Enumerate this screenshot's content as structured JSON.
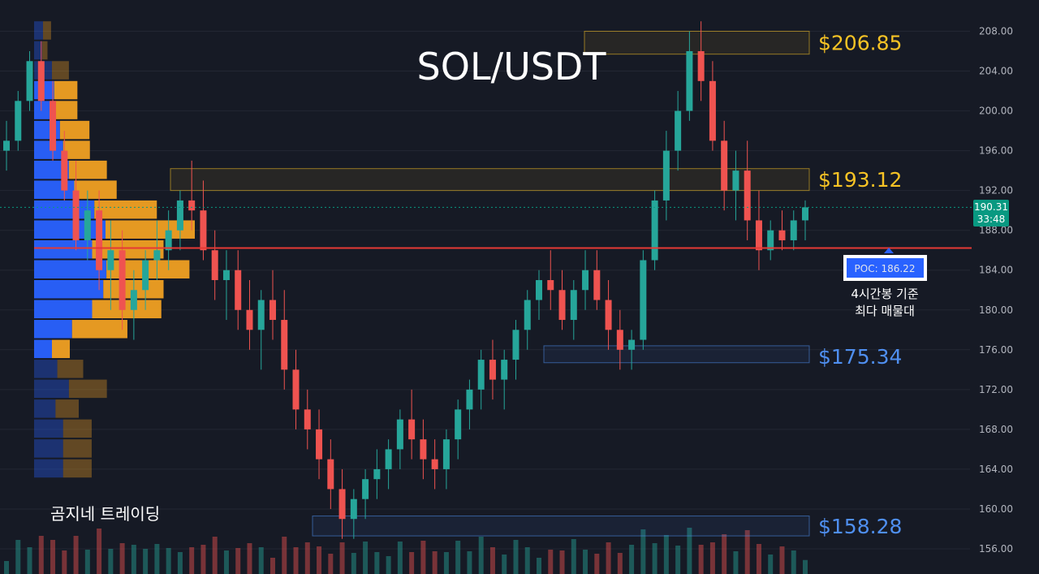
{
  "chart_data": {
    "type": "candlestick",
    "title": "SOL/USDT",
    "timeframe_note": [
      "4시간봉 기준",
      "최다 매물대"
    ],
    "watermark": "곰지네 트레이딩",
    "y_axis": {
      "range": [
        154,
        210
      ],
      "ticks": [
        "208.00",
        "204.00",
        "200.00",
        "196.00",
        "192.00",
        "188.00",
        "184.00",
        "180.00",
        "176.00",
        "172.00",
        "168.00",
        "164.00",
        "160.00",
        "156.00"
      ]
    },
    "last_price": {
      "value": "190.31",
      "countdown": "33:48",
      "price": 190.31
    },
    "poc": {
      "label": "POC: 186.22",
      "price": 186.22
    },
    "levels": [
      {
        "label": "$206.85",
        "price": 206.85,
        "color": "#f7c325",
        "zone": [
          205.7,
          208.0
        ],
        "zone_x_start": 0.69
      },
      {
        "label": "$193.12",
        "price": 193.12,
        "color": "#f7c325",
        "zone": [
          192.0,
          194.2
        ],
        "zone_x_start": 0.18
      },
      {
        "label": "$175.34",
        "price": 175.34,
        "color": "#4f8ff0",
        "zone": [
          174.7,
          176.4
        ],
        "zone_x_start": 0.64
      },
      {
        "label": "$158.28",
        "price": 158.28,
        "color": "#4f8ff0",
        "zone": [
          157.3,
          159.3
        ],
        "zone_x_start": 0.355
      }
    ],
    "candles": [
      [
        196,
        199,
        194,
        197
      ],
      [
        197,
        202,
        196,
        201
      ],
      [
        201,
        206,
        200,
        205
      ],
      [
        205,
        207,
        200,
        201
      ],
      [
        201,
        203,
        195,
        196
      ],
      [
        196,
        198,
        191,
        192
      ],
      [
        192,
        195,
        186,
        187
      ],
      [
        187,
        192,
        185,
        190
      ],
      [
        190,
        192,
        182,
        184
      ],
      [
        184,
        189,
        180,
        186
      ],
      [
        186,
        188,
        178,
        180
      ],
      [
        180,
        184,
        177,
        182
      ],
      [
        182,
        186,
        180,
        185
      ],
      [
        185,
        189,
        183,
        186
      ],
      [
        186,
        190,
        184,
        188
      ],
      [
        188,
        192,
        186,
        191
      ],
      [
        191,
        195,
        188,
        190
      ],
      [
        190,
        193,
        185,
        186
      ],
      [
        186,
        188,
        181,
        183
      ],
      [
        183,
        186,
        179,
        184
      ],
      [
        184,
        186,
        178,
        180
      ],
      [
        180,
        183,
        176,
        178
      ],
      [
        178,
        182,
        174,
        181
      ],
      [
        181,
        184,
        177,
        179
      ],
      [
        179,
        182,
        172,
        174
      ],
      [
        174,
        176,
        168,
        170
      ],
      [
        170,
        172,
        166,
        168
      ],
      [
        168,
        170,
        163,
        165
      ],
      [
        165,
        167,
        160,
        162
      ],
      [
        162,
        164,
        157,
        159
      ],
      [
        159,
        162,
        157,
        161
      ],
      [
        161,
        164,
        159,
        163
      ],
      [
        163,
        166,
        161,
        164
      ],
      [
        164,
        167,
        162,
        166
      ],
      [
        166,
        170,
        164,
        169
      ],
      [
        169,
        172,
        165,
        167
      ],
      [
        167,
        169,
        163,
        165
      ],
      [
        165,
        167,
        162,
        164
      ],
      [
        164,
        168,
        162,
        167
      ],
      [
        167,
        171,
        165,
        170
      ],
      [
        170,
        173,
        168,
        172
      ],
      [
        172,
        176,
        170,
        175
      ],
      [
        175,
        177,
        171,
        173
      ],
      [
        173,
        176,
        170,
        175
      ],
      [
        175,
        179,
        173,
        178
      ],
      [
        178,
        182,
        176,
        181
      ],
      [
        181,
        184,
        179,
        183
      ],
      [
        183,
        186,
        180,
        182
      ],
      [
        182,
        184,
        178,
        179
      ],
      [
        179,
        183,
        177,
        182
      ],
      [
        182,
        186,
        180,
        184
      ],
      [
        184,
        186,
        180,
        181
      ],
      [
        181,
        183,
        176,
        178
      ],
      [
        178,
        180,
        174,
        176
      ],
      [
        176,
        178,
        174,
        177
      ],
      [
        177,
        186,
        176,
        185
      ],
      [
        185,
        192,
        184,
        191
      ],
      [
        191,
        198,
        189,
        196
      ],
      [
        196,
        202,
        194,
        200
      ],
      [
        200,
        208,
        199,
        206
      ],
      [
        206,
        209,
        201,
        203
      ],
      [
        203,
        205,
        196,
        197
      ],
      [
        197,
        199,
        190,
        192
      ],
      [
        192,
        196,
        189,
        194
      ],
      [
        194,
        197,
        187,
        189
      ],
      [
        189,
        192,
        184,
        186
      ],
      [
        186,
        189,
        185,
        188
      ],
      [
        188,
        190,
        186,
        187
      ],
      [
        187,
        190,
        186,
        189
      ],
      [
        189,
        191,
        187,
        190.31
      ]
    ],
    "volume_profile": [
      {
        "price": 208.0,
        "buy": 20,
        "sell": 18
      },
      {
        "price": 206.0,
        "buy": 18,
        "sell": 12
      },
      {
        "price": 204.0,
        "buy": 40,
        "sell": 38
      },
      {
        "price": 202.0,
        "buy": 45,
        "sell": 52
      },
      {
        "price": 200.0,
        "buy": 45,
        "sell": 52
      },
      {
        "price": 198.0,
        "buy": 58,
        "sell": 66
      },
      {
        "price": 196.0,
        "buy": 65,
        "sell": 60
      },
      {
        "price": 194.0,
        "buy": 78,
        "sell": 85
      },
      {
        "price": 192.0,
        "buy": 90,
        "sell": 95
      },
      {
        "price": 190.0,
        "buy": 135,
        "sell": 140
      },
      {
        "price": 188.0,
        "buy": 160,
        "sell": 200
      },
      {
        "price": 186.0,
        "buy": 130,
        "sell": 160
      },
      {
        "price": 184.0,
        "buy": 162,
        "sell": 186
      },
      {
        "price": 182.0,
        "buy": 155,
        "sell": 135
      },
      {
        "price": 180.0,
        "buy": 130,
        "sell": 155
      },
      {
        "price": 178.0,
        "buy": 85,
        "sell": 124
      },
      {
        "price": 176.0,
        "buy": 40,
        "sell": 40
      },
      {
        "price": 174.0,
        "buy": 52,
        "sell": 58
      },
      {
        "price": 172.0,
        "buy": 78,
        "sell": 85
      },
      {
        "price": 170.0,
        "buy": 48,
        "sell": 52
      },
      {
        "price": 168.0,
        "buy": 65,
        "sell": 64
      },
      {
        "price": 166.0,
        "buy": 65,
        "sell": 64
      },
      {
        "price": 164.0,
        "buy": 65,
        "sell": 64
      }
    ],
    "colors": {
      "bg": "#161a25",
      "up": "#26a69a",
      "down": "#ef5350",
      "poc_line": "#e53935",
      "buy_profile": "#2962ff",
      "sell_profile": "#f0a022",
      "last_price": "#089981"
    }
  }
}
